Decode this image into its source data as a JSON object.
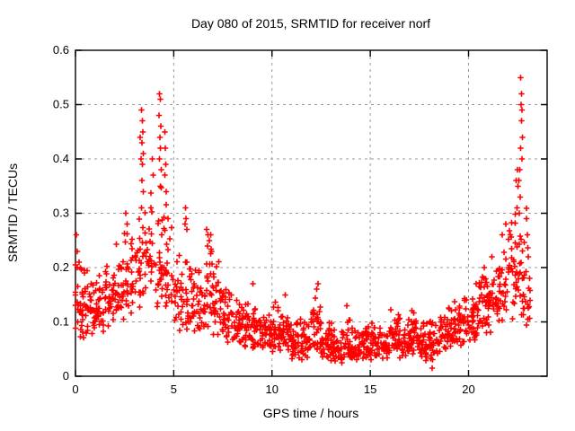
{
  "window": {
    "background": "#ffffff"
  },
  "chart": {
    "title": "Day 080 of 2015, SRMTID for receiver norf",
    "xlabel": "GPS time / hours",
    "ylabel": "SRMTID / TECUs"
  },
  "chart_data": {
    "type": "scatter",
    "title": "Day 080 of 2015, SRMTID for receiver norf",
    "xlabel": "GPS time / hours",
    "ylabel": "SRMTID / TECUs",
    "marker": "plus",
    "marker_color": "#ff0000",
    "axis_color": "#000000",
    "grid": true,
    "grid_color": "#999999",
    "xlim": [
      0,
      24
    ],
    "ylim": [
      0,
      0.6
    ],
    "x_ticks": {
      "values": [
        0,
        5,
        10,
        15,
        20
      ],
      "labels": [
        "0",
        "5",
        "10",
        "15",
        "20"
      ]
    },
    "y_ticks": {
      "values": [
        0,
        0.1,
        0.2,
        0.3,
        0.4,
        0.5,
        0.6
      ],
      "labels": [
        "0",
        "0.1",
        "0.2",
        "0.3",
        "0.4",
        "0.5",
        "0.6"
      ]
    },
    "seed": 20150080,
    "series": [
      {
        "name": "SRMTID",
        "peak_points": [
          [
            0.05,
            0.26
          ],
          [
            0.1,
            0.23
          ],
          [
            0.18,
            0.21
          ],
          [
            2.55,
            0.3
          ],
          [
            2.62,
            0.28
          ],
          [
            3.3,
            0.44
          ],
          [
            3.33,
            0.4
          ],
          [
            3.36,
            0.49
          ],
          [
            3.4,
            0.47
          ],
          [
            3.43,
            0.45
          ],
          [
            3.38,
            0.43
          ],
          [
            3.45,
            0.41
          ],
          [
            3.41,
            0.39
          ],
          [
            3.39,
            0.36
          ],
          [
            3.44,
            0.34
          ],
          [
            3.37,
            0.31
          ],
          [
            3.9,
            0.4
          ],
          [
            3.95,
            0.37
          ],
          [
            4.28,
            0.52
          ],
          [
            4.31,
            0.51
          ],
          [
            4.26,
            0.48
          ],
          [
            4.34,
            0.46
          ],
          [
            4.3,
            0.44
          ],
          [
            4.33,
            0.42
          ],
          [
            4.28,
            0.4
          ],
          [
            4.36,
            0.38
          ],
          [
            4.31,
            0.35
          ],
          [
            4.55,
            0.45
          ],
          [
            4.58,
            0.42
          ],
          [
            4.6,
            0.39
          ],
          [
            4.54,
            0.37
          ],
          [
            4.62,
            0.34
          ],
          [
            5.6,
            0.31
          ],
          [
            5.63,
            0.29
          ],
          [
            5.58,
            0.28
          ],
          [
            5.66,
            0.27
          ],
          [
            6.68,
            0.27
          ],
          [
            6.74,
            0.26
          ],
          [
            6.81,
            0.25
          ],
          [
            6.72,
            0.24
          ],
          [
            6.88,
            0.26
          ],
          [
            6.92,
            0.23
          ],
          [
            9.02,
            0.17
          ],
          [
            10.68,
            0.15
          ],
          [
            12.28,
            0.16
          ],
          [
            12.34,
            0.17
          ],
          [
            13.8,
            0.13
          ],
          [
            18.15,
            0.015
          ],
          [
            20.8,
            0.2
          ],
          [
            21.9,
            0.28
          ],
          [
            22.42,
            0.36
          ],
          [
            22.48,
            0.38
          ],
          [
            22.66,
            0.55
          ],
          [
            22.7,
            0.52
          ],
          [
            22.68,
            0.5
          ],
          [
            22.73,
            0.49
          ],
          [
            22.69,
            0.47
          ],
          [
            22.75,
            0.44
          ],
          [
            22.64,
            0.42
          ],
          [
            22.71,
            0.4
          ],
          [
            22.6,
            0.38
          ],
          [
            22.56,
            0.36
          ],
          [
            22.52,
            0.35
          ],
          [
            22.62,
            0.33
          ],
          [
            22.47,
            0.31
          ],
          [
            22.58,
            0.3
          ],
          [
            22.95,
            0.29
          ],
          [
            23.0,
            0.26
          ],
          [
            23.05,
            0.22
          ],
          [
            23.1,
            0.18
          ],
          [
            23.12,
            0.14
          ]
        ],
        "noise_bands": [
          [
            0.0,
            0.5,
            34,
            0.07,
            0.24
          ],
          [
            0.5,
            1.0,
            34,
            0.06,
            0.21
          ],
          [
            1.0,
            1.5,
            30,
            0.08,
            0.2
          ],
          [
            1.5,
            2.0,
            30,
            0.09,
            0.23
          ],
          [
            2.0,
            2.5,
            30,
            0.1,
            0.26
          ],
          [
            2.5,
            3.0,
            28,
            0.1,
            0.29
          ],
          [
            3.0,
            3.5,
            26,
            0.12,
            0.33
          ],
          [
            3.5,
            4.0,
            26,
            0.14,
            0.38
          ],
          [
            4.0,
            4.5,
            26,
            0.12,
            0.36
          ],
          [
            4.5,
            5.0,
            26,
            0.1,
            0.34
          ],
          [
            5.0,
            5.5,
            26,
            0.08,
            0.24
          ],
          [
            5.5,
            6.0,
            26,
            0.07,
            0.26
          ],
          [
            6.0,
            6.5,
            28,
            0.08,
            0.22
          ],
          [
            6.5,
            7.0,
            30,
            0.08,
            0.26
          ],
          [
            7.0,
            7.5,
            30,
            0.07,
            0.22
          ],
          [
            7.5,
            8.0,
            30,
            0.06,
            0.18
          ],
          [
            8.0,
            8.5,
            30,
            0.06,
            0.16
          ],
          [
            8.5,
            9.0,
            30,
            0.05,
            0.16
          ],
          [
            9.0,
            9.5,
            30,
            0.05,
            0.14
          ],
          [
            9.5,
            10.0,
            30,
            0.05,
            0.14
          ],
          [
            10.0,
            10.5,
            32,
            0.04,
            0.14
          ],
          [
            10.5,
            11.0,
            32,
            0.04,
            0.13
          ],
          [
            11.0,
            11.5,
            32,
            0.03,
            0.12
          ],
          [
            11.5,
            12.0,
            32,
            0.03,
            0.12
          ],
          [
            12.0,
            12.5,
            32,
            0.04,
            0.16
          ],
          [
            12.5,
            13.0,
            32,
            0.03,
            0.11
          ],
          [
            13.0,
            13.5,
            32,
            0.02,
            0.1
          ],
          [
            13.5,
            14.0,
            32,
            0.02,
            0.12
          ],
          [
            14.0,
            14.5,
            32,
            0.02,
            0.1
          ],
          [
            14.5,
            15.0,
            32,
            0.03,
            0.11
          ],
          [
            15.0,
            15.5,
            32,
            0.03,
            0.11
          ],
          [
            15.5,
            16.0,
            32,
            0.03,
            0.1
          ],
          [
            16.0,
            16.5,
            32,
            0.04,
            0.13
          ],
          [
            16.5,
            17.0,
            32,
            0.03,
            0.12
          ],
          [
            17.0,
            17.5,
            32,
            0.04,
            0.13
          ],
          [
            17.5,
            18.0,
            32,
            0.025,
            0.11
          ],
          [
            18.0,
            18.5,
            32,
            0.03,
            0.11
          ],
          [
            18.5,
            19.0,
            32,
            0.04,
            0.13
          ],
          [
            19.0,
            19.5,
            32,
            0.05,
            0.15
          ],
          [
            19.5,
            20.0,
            32,
            0.05,
            0.17
          ],
          [
            20.0,
            20.5,
            32,
            0.06,
            0.19
          ],
          [
            20.5,
            21.0,
            32,
            0.07,
            0.21
          ],
          [
            21.0,
            21.5,
            30,
            0.08,
            0.23
          ],
          [
            21.5,
            22.0,
            30,
            0.09,
            0.27
          ],
          [
            22.0,
            22.5,
            30,
            0.1,
            0.34
          ],
          [
            22.5,
            23.0,
            26,
            0.09,
            0.33
          ],
          [
            23.0,
            23.2,
            8,
            0.1,
            0.26
          ]
        ]
      }
    ]
  }
}
